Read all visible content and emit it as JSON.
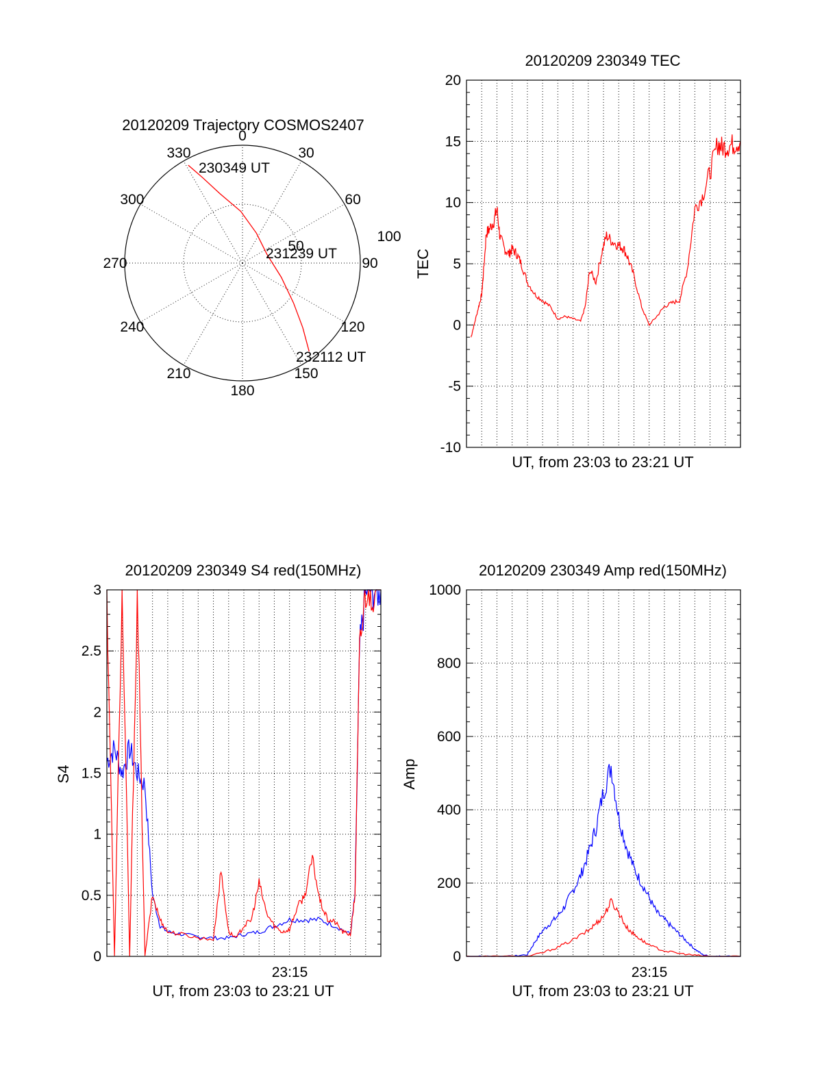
{
  "chart_data": [
    {
      "type": "polar",
      "title": "20120209 Trajectory COSMOS2407",
      "angle_labels": [
        "0",
        "30",
        "60",
        "90",
        "120",
        "150",
        "180",
        "210",
        "240",
        "270",
        "300",
        "330"
      ],
      "radial_labels": [
        "50",
        "100"
      ],
      "rlim": [
        0,
        100
      ],
      "series": [
        {
          "color": "#ff0000",
          "points": [
            {
              "az": 331,
              "el_r": 95
            },
            {
              "az": 335,
              "el_r": 80
            },
            {
              "az": 342,
              "el_r": 62
            },
            {
              "az": 358,
              "el_r": 44
            },
            {
              "az": 25,
              "el_r": 28
            },
            {
              "az": 70,
              "el_r": 22
            },
            {
              "az": 110,
              "el_r": 35
            },
            {
              "az": 128,
              "el_r": 55
            },
            {
              "az": 137,
              "el_r": 75
            },
            {
              "az": 143,
              "el_r": 94
            }
          ]
        }
      ],
      "annotations": [
        "230349 UT",
        "231239 UT",
        "232112 UT"
      ],
      "grid": true
    },
    {
      "type": "line",
      "title": "20120209 230349 TEC",
      "xlabel": "UT, from 23:03 to 23:21 UT",
      "ylabel": "TEC",
      "xlim": [
        0,
        18
      ],
      "ylim": [
        -10,
        20
      ],
      "yticks": [
        "-10",
        "-5",
        "0",
        "5",
        "10",
        "15",
        "20"
      ],
      "grid": true,
      "series": [
        {
          "color": "#ff0000",
          "x": [
            0.3,
            0.5,
            0.8,
            1.0,
            1.1,
            1.3,
            1.5,
            1.8,
            2.0,
            2.2,
            2.5,
            2.8,
            3.0,
            3.3,
            3.6,
            4.0,
            4.5,
            5.0,
            5.5,
            6.0,
            6.5,
            7.0,
            7.5,
            7.8,
            8.1,
            8.5,
            8.9,
            9.2,
            9.6,
            10.0,
            10.3,
            10.6,
            11.0,
            11.5,
            12.0,
            12.5,
            13.0,
            13.5,
            14.0,
            14.5,
            15.0,
            15.5,
            16.0,
            16.5,
            16.8,
            17.2,
            17.6,
            18.0
          ],
          "y": [
            -1.0,
            0.0,
            1.5,
            2.5,
            4.0,
            7.5,
            7.8,
            8.5,
            9.5,
            7.2,
            6.2,
            5.8,
            6.2,
            5.8,
            5.0,
            3.5,
            2.5,
            2.0,
            1.5,
            0.5,
            0.7,
            0.5,
            0.3,
            1.5,
            4.5,
            3.5,
            6.0,
            7.3,
            6.8,
            6.5,
            6.3,
            5.5,
            4.0,
            1.5,
            0.0,
            0.7,
            1.5,
            1.8,
            2.0,
            4.5,
            9.5,
            10.5,
            12.5,
            14.8,
            14.5,
            14.6,
            14.8,
            15.0
          ]
        }
      ]
    },
    {
      "type": "line",
      "title": "20120209 230349 S4 red(150MHz)",
      "xlabel": "UT, from 23:03 to 23:21 UT",
      "ylabel": "S4",
      "xtick_label": "23:15",
      "xlim": [
        0,
        18
      ],
      "ylim": [
        0,
        3
      ],
      "yticks": [
        "0",
        "0.5",
        "1",
        "1.5",
        "2",
        "2.5",
        "3"
      ],
      "grid": true,
      "series": [
        {
          "color": "#0000ff",
          "x": [
            0.0,
            0.5,
            1.0,
            1.5,
            2.0,
            2.5,
            3.0,
            3.5,
            4.0,
            5.0,
            6.0,
            7.0,
            8.0,
            9.0,
            10.0,
            11.0,
            12.0,
            13.0,
            14.0,
            15.0,
            16.0,
            16.3,
            16.6,
            17.0,
            17.5,
            18.0
          ],
          "y": [
            1.6,
            1.7,
            1.5,
            1.7,
            1.5,
            1.4,
            0.5,
            0.25,
            0.2,
            0.18,
            0.16,
            0.15,
            0.15,
            0.18,
            0.2,
            0.25,
            0.3,
            0.3,
            0.3,
            0.25,
            0.18,
            0.5,
            2.5,
            3.0,
            3.0,
            3.0
          ]
        },
        {
          "color": "#ff0000",
          "x": [
            0.0,
            0.5,
            1.0,
            1.5,
            2.0,
            2.5,
            3.0,
            3.5,
            4.0,
            5.0,
            6.0,
            7.0,
            7.5,
            8.0,
            8.5,
            9.0,
            9.5,
            10.0,
            10.5,
            11.0,
            11.5,
            12.0,
            12.5,
            13.0,
            13.5,
            14.0,
            14.5,
            15.0,
            15.5,
            16.0,
            16.3,
            16.6,
            17.0,
            17.5,
            18.0
          ],
          "y": [
            3.0,
            0.0,
            3.0,
            0.0,
            3.0,
            0.0,
            0.5,
            0.3,
            0.2,
            0.18,
            0.15,
            0.14,
            0.7,
            0.2,
            0.15,
            0.25,
            0.3,
            0.6,
            0.35,
            0.25,
            0.2,
            0.22,
            0.4,
            0.5,
            0.8,
            0.45,
            0.3,
            0.28,
            0.2,
            0.18,
            0.5,
            2.5,
            3.0,
            3.0,
            3.0
          ]
        }
      ]
    },
    {
      "type": "line",
      "title": "20120209 230349 Amp red(150MHz)",
      "xlabel": "UT, from 23:03 to 23:21 UT",
      "ylabel": "Amp",
      "xtick_label": "23:15",
      "xlim": [
        0,
        18
      ],
      "ylim": [
        0,
        1000
      ],
      "yticks": [
        "0",
        "200",
        "400",
        "600",
        "800",
        "1000"
      ],
      "grid": true,
      "series": [
        {
          "color": "#0000ff",
          "x": [
            0.0,
            1.0,
            2.0,
            3.0,
            4.0,
            4.5,
            5.0,
            5.5,
            6.0,
            6.5,
            7.0,
            7.5,
            8.0,
            8.5,
            9.0,
            9.5,
            10.0,
            10.5,
            11.0,
            11.5,
            12.0,
            12.5,
            13.0,
            13.5,
            14.0,
            14.5,
            15.0,
            15.5,
            16.0,
            16.5,
            17.0,
            18.0
          ],
          "y": [
            0,
            0,
            0,
            0,
            5,
            40,
            70,
            90,
            110,
            140,
            180,
            220,
            280,
            350,
            450,
            520,
            380,
            300,
            240,
            200,
            160,
            120,
            100,
            80,
            60,
            40,
            20,
            5,
            0,
            0,
            0,
            0
          ]
        },
        {
          "color": "#ff0000",
          "x": [
            0.0,
            2.0,
            4.0,
            5.0,
            6.0,
            7.0,
            8.0,
            8.5,
            9.0,
            9.5,
            10.0,
            10.5,
            11.0,
            11.5,
            12.0,
            13.0,
            14.0,
            15.0,
            16.0,
            18.0
          ],
          "y": [
            0,
            0,
            0,
            10,
            25,
            45,
            70,
            90,
            110,
            150,
            120,
            80,
            60,
            45,
            30,
            15,
            8,
            3,
            0,
            0
          ]
        }
      ]
    }
  ]
}
